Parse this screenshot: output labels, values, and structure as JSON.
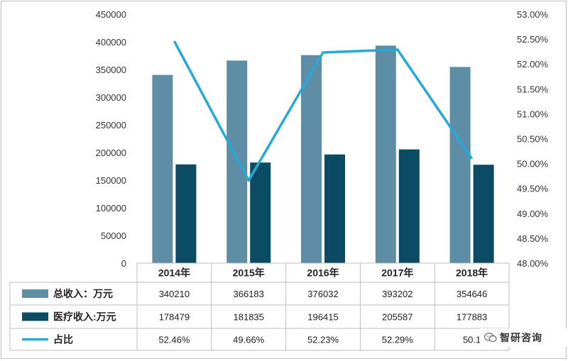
{
  "chart_data": {
    "type": "bar",
    "title": "",
    "categories": [
      "2014年",
      "2015年",
      "2016年",
      "2017年",
      "2018年"
    ],
    "series": [
      {
        "name": "总收入：万元",
        "kind": "bar",
        "axis": "left",
        "color": "#5e8ea6",
        "values": [
          340210,
          366183,
          376032,
          393202,
          354646
        ],
        "table": [
          "340210",
          "366183",
          "376032",
          "393202",
          "354646"
        ]
      },
      {
        "name": "医疗收入:万元",
        "kind": "bar",
        "axis": "left",
        "color": "#0b4b64",
        "values": [
          178479,
          181835,
          196415,
          205587,
          177883
        ],
        "table": [
          "178479",
          "181835",
          "196415",
          "205587",
          "177883"
        ]
      },
      {
        "name": "占比",
        "kind": "line",
        "axis": "right",
        "color": "#26a8d8",
        "values": [
          52.46,
          49.66,
          52.23,
          52.29,
          50.1
        ],
        "table": [
          "52.46%",
          "49.66%",
          "52.23%",
          "52.29%",
          "50.1"
        ]
      }
    ],
    "y_left": {
      "lim": [
        0,
        450000
      ],
      "ticks": [
        "0",
        "50000",
        "100000",
        "150000",
        "200000",
        "250000",
        "300000",
        "350000",
        "400000",
        "450000"
      ]
    },
    "y_right": {
      "lim": [
        48,
        53
      ],
      "ticks": [
        "48.00%",
        "48.50%",
        "49.00%",
        "49.50%",
        "50.00%",
        "50.50%",
        "51.00%",
        "51.50%",
        "52.00%",
        "52.50%",
        "53.00%"
      ]
    },
    "grid": false,
    "legend": "data-table"
  },
  "watermark": {
    "text": "智研咨询",
    "icon": "wechat-icon"
  }
}
